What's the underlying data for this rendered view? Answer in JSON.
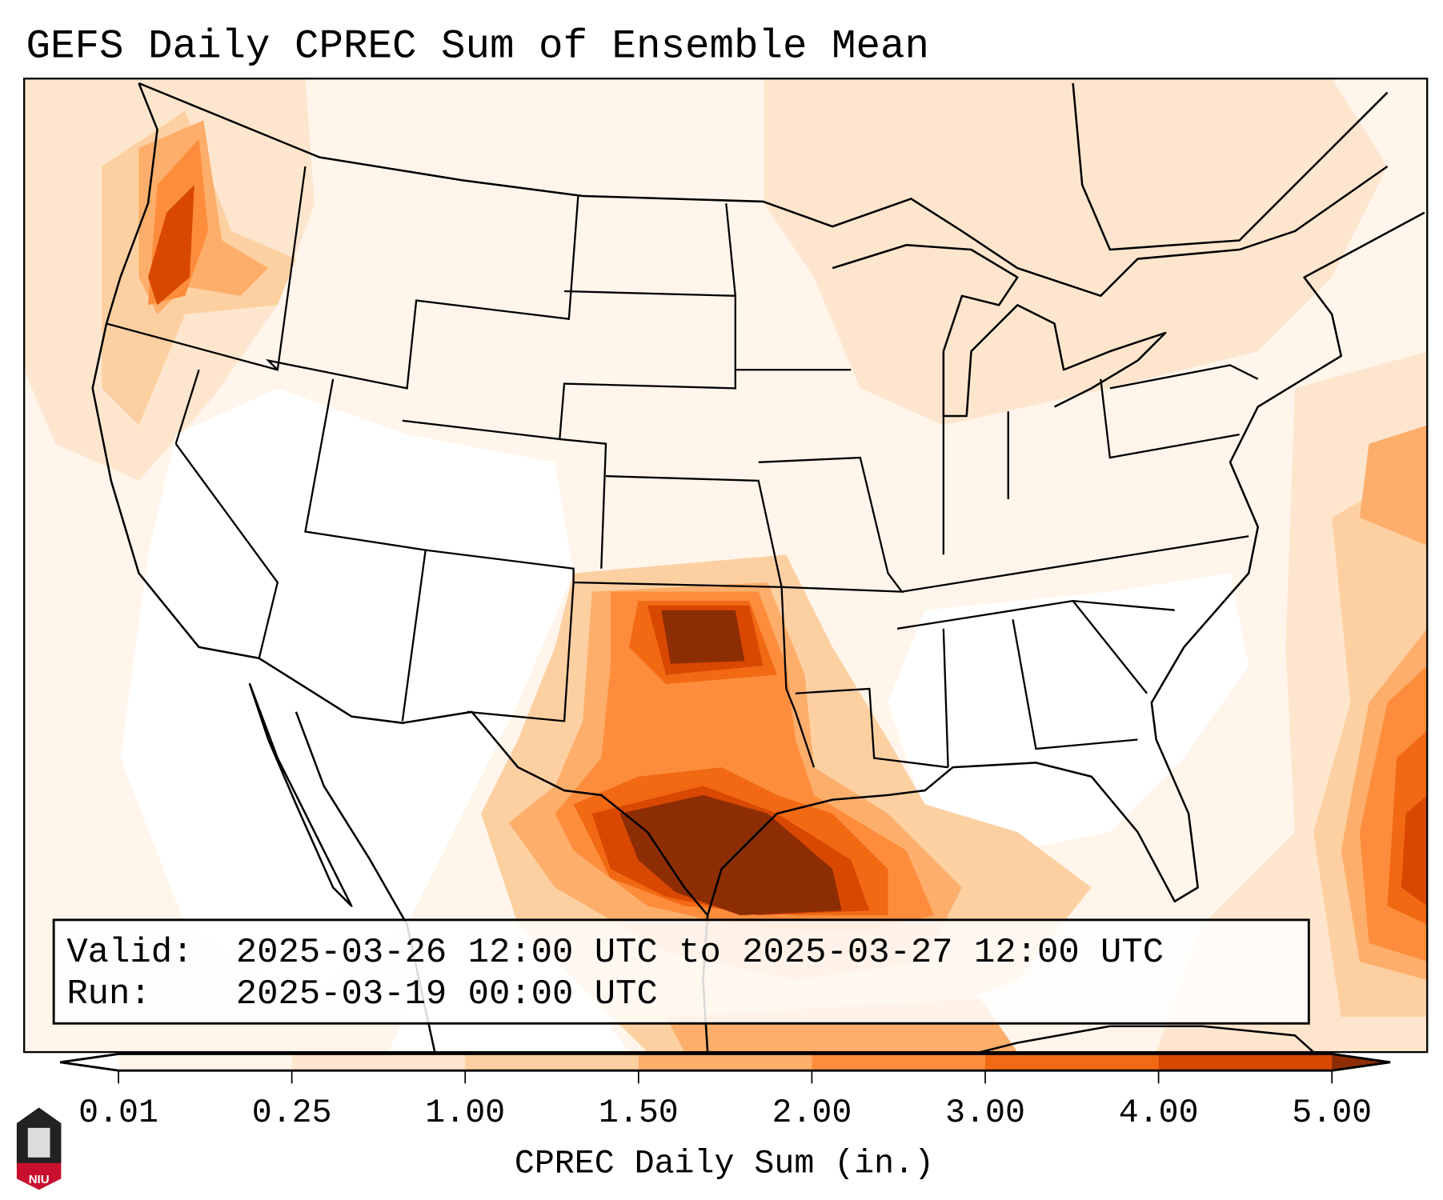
{
  "title": "GEFS Daily CPREC Sum of Ensemble Mean",
  "info": {
    "valid_label": "Valid:",
    "valid_value": "2025-03-26 12:00 UTC to 2025-03-27 12:00 UTC",
    "run_label": "Run:",
    "run_value": "2025-03-19 00:00 UTC"
  },
  "logo_text": "NIU",
  "chart_data": {
    "type": "heatmap",
    "title": "GEFS Daily CPREC Sum of Ensemble Mean",
    "colorbar": {
      "label": "CPREC Daily Sum (in.)",
      "ticks": [
        "0.01",
        "0.25",
        "1.00",
        "1.50",
        "2.00",
        "3.00",
        "4.00",
        "5.00"
      ],
      "levels": [
        0.01,
        0.25,
        1.0,
        1.5,
        2.0,
        3.0,
        4.0,
        5.0
      ],
      "colors": [
        "#fff5eb",
        "#fee6ce",
        "#fdd0a2",
        "#fdae6b",
        "#fd8d3c",
        "#f16913",
        "#d94801"
      ],
      "under_color": "#ffffff",
      "over_color": "#8c2d04",
      "extend": "both"
    },
    "maxima_regions": [
      "Oklahoma",
      "East Texas / Gulf coast",
      "Pacific Northwest coast",
      "Western Atlantic"
    ]
  }
}
